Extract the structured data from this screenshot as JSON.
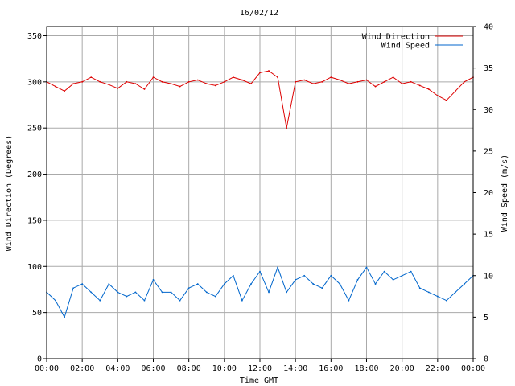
{
  "chart_data": {
    "type": "line",
    "title": "16/02/12",
    "xlabel": "Time GMT",
    "ylabel_left": "Wind Direction (Degrees)",
    "ylabel_right": "Wind Speed (m/s)",
    "x_ticks": [
      "00:00",
      "02:00",
      "04:00",
      "06:00",
      "08:00",
      "10:00",
      "12:00",
      "14:00",
      "16:00",
      "18:00",
      "20:00",
      "22:00",
      "00:00"
    ],
    "x_range_hours": [
      0,
      24
    ],
    "y_left_ticks": [
      0,
      50,
      100,
      150,
      200,
      250,
      300,
      350
    ],
    "y_left_range": [
      0,
      360
    ],
    "y_right_ticks": [
      0,
      5,
      10,
      15,
      20,
      25,
      30,
      35,
      40
    ],
    "y_right_range": [
      0,
      40
    ],
    "grid": true,
    "legend_position": "top-right",
    "series": [
      {
        "name": "Wind Direction",
        "axis": "left",
        "color": "#dd0000",
        "x_hours": [
          0,
          0.5,
          1,
          1.5,
          2,
          2.5,
          3,
          3.5,
          4,
          4.5,
          5,
          5.5,
          6,
          6.5,
          7,
          7.5,
          8,
          8.5,
          9,
          9.5,
          10,
          10.5,
          11,
          11.5,
          12,
          12.5,
          13,
          13.5,
          14,
          14.5,
          15,
          15.5,
          16,
          16.5,
          17,
          17.5,
          18,
          18.5,
          19,
          19.5,
          20,
          20.5,
          21,
          21.5,
          22,
          22.5,
          23,
          23.5,
          24
        ],
        "values": [
          300,
          295,
          290,
          298,
          300,
          305,
          300,
          297,
          293,
          300,
          298,
          292,
          305,
          300,
          298,
          295,
          300,
          302,
          298,
          296,
          300,
          305,
          302,
          298,
          310,
          312,
          305,
          250,
          300,
          302,
          298,
          300,
          305,
          302,
          298,
          300,
          302,
          295,
          300,
          305,
          298,
          300,
          296,
          292,
          285,
          280,
          290,
          300,
          305
        ]
      },
      {
        "name": "Wind Speed",
        "axis": "right",
        "color": "#0066cc",
        "x_hours": [
          0,
          0.5,
          1,
          1.5,
          2,
          2.5,
          3,
          3.5,
          4,
          4.5,
          5,
          5.5,
          6,
          6.5,
          7,
          7.5,
          8,
          8.5,
          9,
          9.5,
          10,
          10.5,
          11,
          11.5,
          12,
          12.5,
          13,
          13.5,
          14,
          14.5,
          15,
          15.5,
          16,
          16.5,
          17,
          17.5,
          18,
          18.5,
          19,
          19.5,
          20,
          20.5,
          21,
          21.5,
          22,
          22.5,
          23,
          23.5,
          24
        ],
        "values": [
          8,
          7,
          5,
          8.5,
          9,
          8,
          7,
          9,
          8,
          7.5,
          8,
          7,
          9.5,
          8,
          8,
          7,
          8.5,
          9,
          8,
          7.5,
          9,
          10,
          7,
          9,
          10.5,
          8,
          11,
          8,
          9.5,
          10,
          9,
          8.5,
          10,
          9,
          7,
          9.5,
          11,
          9,
          10.5,
          9.5,
          10,
          10.5,
          8.5,
          8,
          7.5,
          7,
          8,
          9,
          10
        ]
      }
    ]
  }
}
